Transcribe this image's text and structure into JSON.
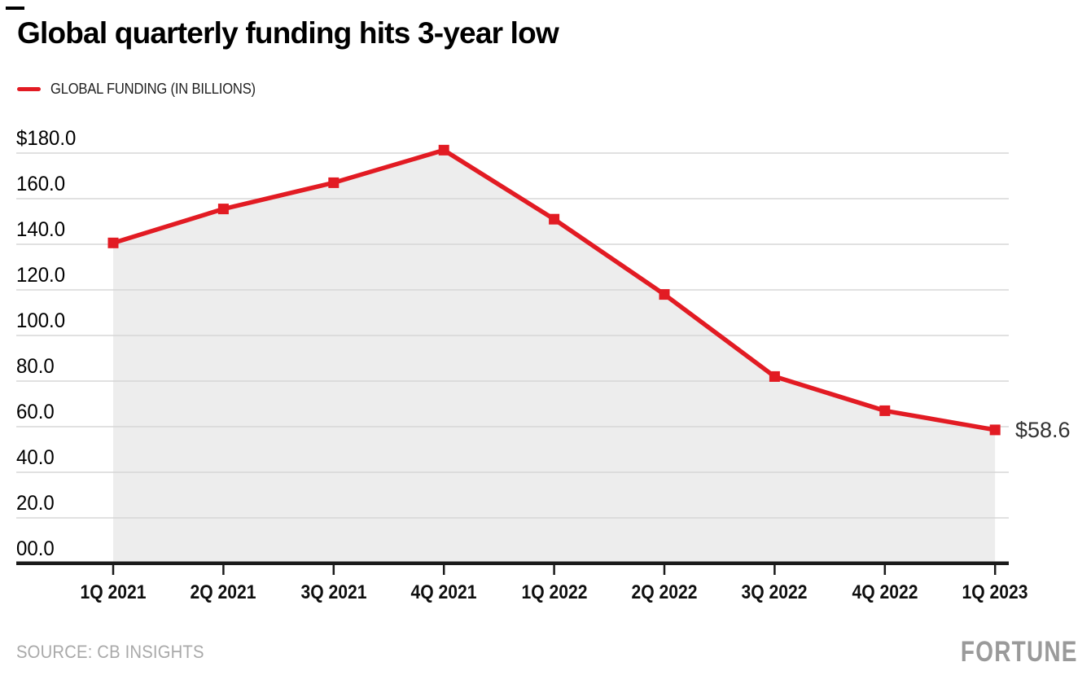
{
  "page": {
    "title": "Global quarterly funding hits 3-year low",
    "source": "SOURCE: CB INSIGHTS",
    "brand": "FORTUNE"
  },
  "legend": {
    "label": "GLOBAL FUNDING (IN BILLIONS)"
  },
  "annotation": {
    "last_value_label": "$58.6"
  },
  "colors": {
    "line": "#e21b23",
    "marker": "#e21b23",
    "area_fill": "#ededed",
    "gridline": "#d7d7d7",
    "axis": "#1a1a1a",
    "muted_text": "#a9a9a9"
  },
  "chart_data": {
    "type": "line",
    "title": "Global quarterly funding hits 3-year low",
    "series": [
      {
        "name": "GLOBAL FUNDING (IN BILLIONS)",
        "values": [
          140.6,
          155.5,
          167.0,
          181.3,
          151.0,
          118.0,
          82.0,
          67.0,
          58.6
        ]
      }
    ],
    "categories": [
      "1Q 2021",
      "2Q 2021",
      "3Q 2021",
      "4Q 2021",
      "1Q 2022",
      "2Q 2022",
      "3Q 2022",
      "4Q 2022",
      "1Q 2023"
    ],
    "xlabel": "",
    "ylabel": "",
    "ylim": [
      0,
      180
    ],
    "y_ticks": [
      180,
      160,
      140,
      120,
      100,
      80,
      60,
      40,
      20,
      0
    ],
    "y_tick_labels": [
      "$180.0",
      "160.0",
      "140.0",
      "120.0",
      "100.0",
      "80.0",
      "60.0",
      "40.0",
      "20.0",
      "00.0"
    ],
    "grid": true,
    "legend_position": "top-left",
    "marker_style": "square",
    "area_fill": true,
    "data_labels": {
      "last_point": "$58.6"
    }
  }
}
